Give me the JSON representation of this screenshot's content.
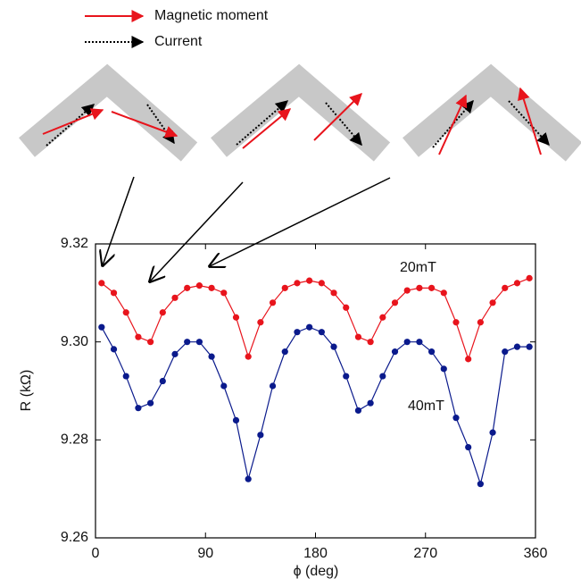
{
  "diagram": {
    "legend": [
      "Magnetic moment",
      "Current"
    ]
  },
  "chart_data": {
    "type": "line",
    "x_label": "ϕ (deg)",
    "y_label": "R (kΩ)",
    "x": [
      5,
      15,
      25,
      35,
      45,
      55,
      65,
      75,
      85,
      95,
      105,
      115,
      125,
      135,
      145,
      155,
      165,
      175,
      185,
      195,
      205,
      215,
      225,
      235,
      245,
      255,
      265,
      275,
      285,
      295,
      305,
      315,
      325,
      335,
      345,
      355
    ],
    "series": [
      {
        "name": "20mT",
        "color": "#e8141c",
        "values": [
          9.312,
          9.31,
          9.306,
          9.301,
          9.3,
          9.306,
          9.309,
          9.311,
          9.3115,
          9.311,
          9.31,
          9.305,
          9.297,
          9.304,
          9.308,
          9.311,
          9.312,
          9.3125,
          9.312,
          9.31,
          9.307,
          9.301,
          9.3,
          9.305,
          9.308,
          9.3105,
          9.311,
          9.311,
          9.31,
          9.304,
          9.2965,
          9.304,
          9.308,
          9.311,
          9.312,
          9.313
        ]
      },
      {
        "name": "40mT",
        "color": "#0a1a8c",
        "values": [
          9.303,
          9.2985,
          9.293,
          9.2865,
          9.2875,
          9.292,
          9.2975,
          9.3,
          9.3,
          9.297,
          9.291,
          9.284,
          9.272,
          9.281,
          9.291,
          9.298,
          9.302,
          9.303,
          9.302,
          9.299,
          9.293,
          9.286,
          9.2875,
          9.293,
          9.298,
          9.3,
          9.3,
          9.298,
          9.2945,
          9.2845,
          9.2785,
          9.271,
          9.2815,
          9.298,
          9.299,
          9.299
        ]
      }
    ],
    "xlim": [
      0,
      360
    ],
    "xticks": [
      0,
      90,
      180,
      270,
      360
    ],
    "ylim": [
      9.26,
      9.32
    ],
    "yticks": [
      9.26,
      9.28,
      {
        "value": 9.3,
        "label": "9.30"
      },
      9.32
    ]
  }
}
